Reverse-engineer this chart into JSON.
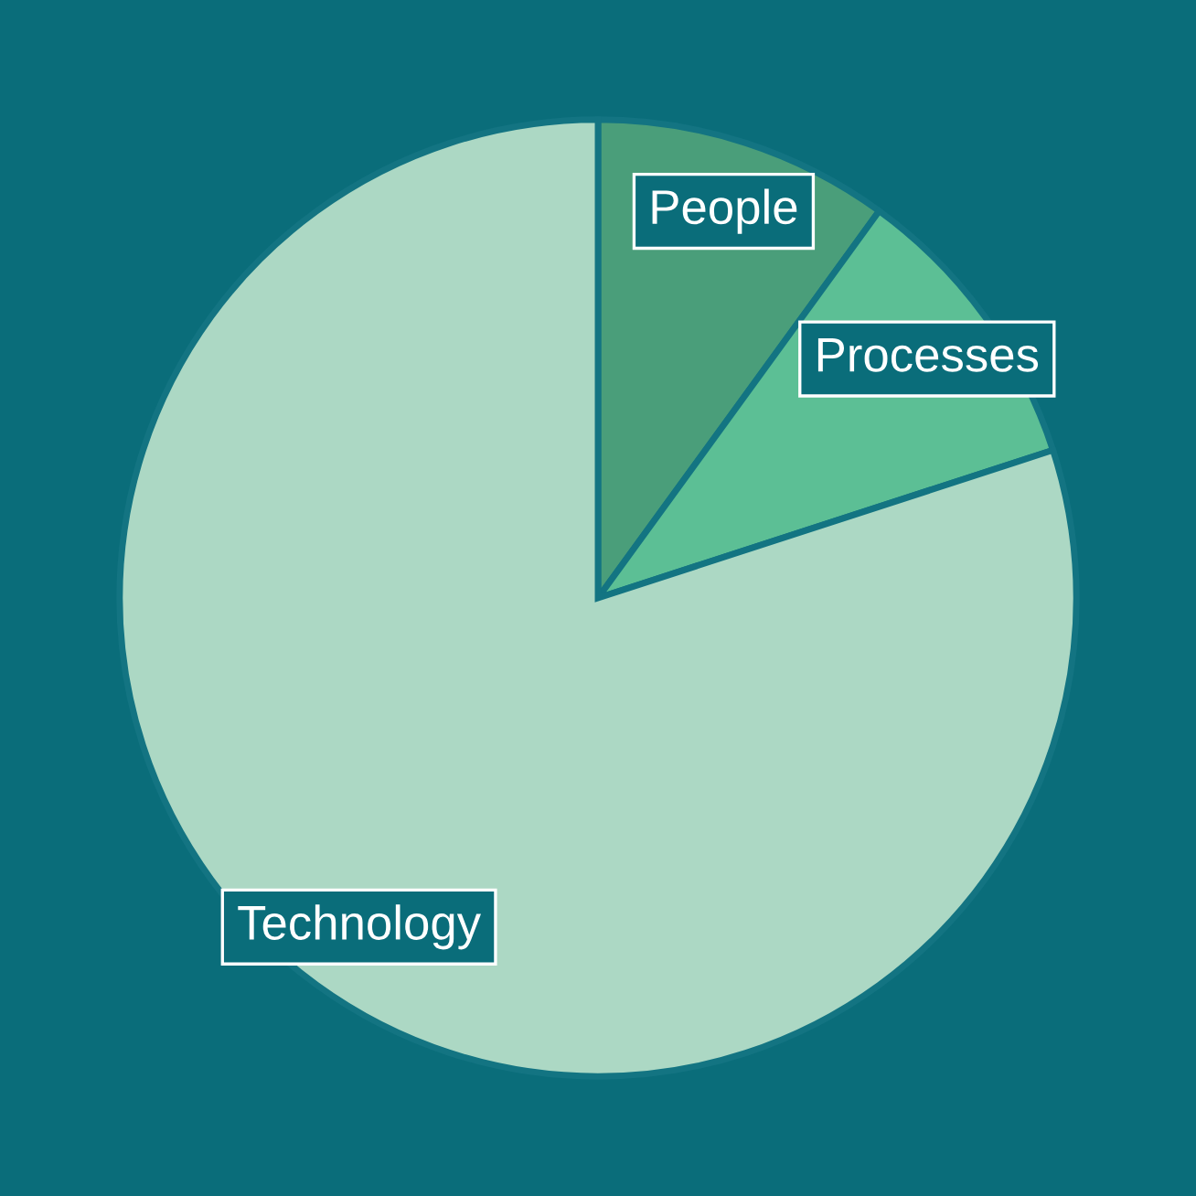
{
  "chart_data": {
    "type": "pie",
    "categories": [
      "People",
      "Processes",
      "Technology"
    ],
    "values": [
      10,
      10,
      80
    ],
    "colors": [
      "#4a9e7a",
      "#5cbf95",
      "#acd8c4"
    ]
  }
}
